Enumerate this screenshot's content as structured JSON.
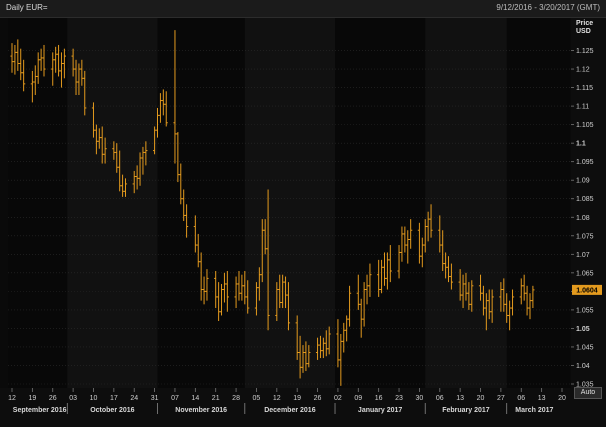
{
  "window": {
    "title": "Daily EUR=",
    "date_range": "9/12/2016 - 3/20/2017 (GMT)"
  },
  "auto_button": {
    "label": "Auto"
  },
  "colors": {
    "background": "#0a0a0a",
    "bar": "#e39a1e",
    "grid": "#2a2a2a",
    "last_price_badge": "#e39a1e"
  },
  "chart_data": {
    "type": "ohlc",
    "title": "Daily EUR=",
    "ylabel": "Price USD",
    "ylabel_line1": "Price",
    "ylabel_line2": "USD",
    "ylim": [
      1.035,
      1.13
    ],
    "x_day_range": [
      0,
      189
    ],
    "y_ticks": [
      "1.125",
      "1.12",
      "1.115",
      "1.11",
      "1.105",
      "1.1",
      "1.095",
      "1.09",
      "1.085",
      "1.08",
      "1.075",
      "1.07",
      "1.065",
      "1.06",
      "1.055",
      "1.05",
      "1.045",
      "1.04",
      "1.035"
    ],
    "y_tick_values": [
      1.125,
      1.12,
      1.115,
      1.11,
      1.105,
      1.1,
      1.095,
      1.09,
      1.085,
      1.08,
      1.075,
      1.07,
      1.065,
      1.06,
      1.055,
      1.05,
      1.045,
      1.04,
      1.035
    ],
    "bold_y_ticks": [
      1.1,
      1.05
    ],
    "x_ticks": [
      {
        "label": "12",
        "day": 0
      },
      {
        "label": "19",
        "day": 7
      },
      {
        "label": "26",
        "day": 14
      },
      {
        "label": "03",
        "day": 21
      },
      {
        "label": "10",
        "day": 28
      },
      {
        "label": "17",
        "day": 35
      },
      {
        "label": "24",
        "day": 42
      },
      {
        "label": "31",
        "day": 49
      },
      {
        "label": "07",
        "day": 56
      },
      {
        "label": "14",
        "day": 63
      },
      {
        "label": "21",
        "day": 70
      },
      {
        "label": "28",
        "day": 77
      },
      {
        "label": "05",
        "day": 84
      },
      {
        "label": "12",
        "day": 91
      },
      {
        "label": "19",
        "day": 98
      },
      {
        "label": "26",
        "day": 105
      },
      {
        "label": "02",
        "day": 112
      },
      {
        "label": "09",
        "day": 119
      },
      {
        "label": "16",
        "day": 126
      },
      {
        "label": "23",
        "day": 133
      },
      {
        "label": "30",
        "day": 140
      },
      {
        "label": "06",
        "day": 147
      },
      {
        "label": "13",
        "day": 154
      },
      {
        "label": "20",
        "day": 161
      },
      {
        "label": "27",
        "day": 168
      },
      {
        "label": "06",
        "day": 175
      },
      {
        "label": "13",
        "day": 182
      },
      {
        "label": "20",
        "day": 189
      }
    ],
    "months": [
      {
        "label": "September 2016",
        "start": 0,
        "end": 19
      },
      {
        "label": "October 2016",
        "start": 19,
        "end": 50
      },
      {
        "label": "November 2016",
        "start": 50,
        "end": 80
      },
      {
        "label": "December 2016",
        "start": 80,
        "end": 111
      },
      {
        "label": "January 2017",
        "start": 111,
        "end": 142
      },
      {
        "label": "February 2017",
        "start": 142,
        "end": 170
      },
      {
        "label": "March 2017",
        "start": 170,
        "end": 189
      }
    ],
    "last_price": "1.0604",
    "last_price_value": 1.0604,
    "bars": [
      {
        "d": 0,
        "o": 1.1235,
        "h": 1.127,
        "l": 1.119,
        "c": 1.122
      },
      {
        "d": 1,
        "o": 1.122,
        "h": 1.1265,
        "l": 1.1185,
        "c": 1.1245
      },
      {
        "d": 2,
        "o": 1.1245,
        "h": 1.128,
        "l": 1.1195,
        "c": 1.1215
      },
      {
        "d": 3,
        "o": 1.1215,
        "h": 1.1255,
        "l": 1.117,
        "c": 1.119
      },
      {
        "d": 4,
        "o": 1.119,
        "h": 1.1225,
        "l": 1.114,
        "c": 1.116
      },
      {
        "d": 7,
        "o": 1.116,
        "h": 1.1195,
        "l": 1.111,
        "c": 1.1165
      },
      {
        "d": 8,
        "o": 1.1165,
        "h": 1.121,
        "l": 1.113,
        "c": 1.118
      },
      {
        "d": 9,
        "o": 1.118,
        "h": 1.1245,
        "l": 1.116,
        "c": 1.1225
      },
      {
        "d": 10,
        "o": 1.1225,
        "h": 1.1255,
        "l": 1.1195,
        "c": 1.123
      },
      {
        "d": 11,
        "o": 1.123,
        "h": 1.1265,
        "l": 1.118,
        "c": 1.12
      },
      {
        "d": 14,
        "o": 1.12,
        "h": 1.1245,
        "l": 1.1155,
        "c": 1.1225
      },
      {
        "d": 15,
        "o": 1.1225,
        "h": 1.126,
        "l": 1.119,
        "c": 1.124
      },
      {
        "d": 16,
        "o": 1.124,
        "h": 1.1265,
        "l": 1.118,
        "c": 1.1195
      },
      {
        "d": 17,
        "o": 1.1195,
        "h": 1.1245,
        "l": 1.115,
        "c": 1.1215
      },
      {
        "d": 18,
        "o": 1.1215,
        "h": 1.1255,
        "l": 1.1175,
        "c": 1.1235
      },
      {
        "d": 21,
        "o": 1.1235,
        "h": 1.1255,
        "l": 1.118,
        "c": 1.12
      },
      {
        "d": 22,
        "o": 1.12,
        "h": 1.1225,
        "l": 1.113,
        "c": 1.1165
      },
      {
        "d": 23,
        "o": 1.1165,
        "h": 1.1215,
        "l": 1.113,
        "c": 1.12
      },
      {
        "d": 24,
        "o": 1.12,
        "h": 1.1225,
        "l": 1.1155,
        "c": 1.1175
      },
      {
        "d": 25,
        "o": 1.1175,
        "h": 1.1195,
        "l": 1.1075,
        "c": 1.1095
      },
      {
        "d": 28,
        "o": 1.1095,
        "h": 1.111,
        "l": 1.1015,
        "c": 1.1035
      },
      {
        "d": 29,
        "o": 1.1035,
        "h": 1.105,
        "l": 1.097,
        "c": 1.1005
      },
      {
        "d": 30,
        "o": 1.1005,
        "h": 1.104,
        "l": 1.0985,
        "c": 1.1015
      },
      {
        "d": 31,
        "o": 1.1015,
        "h": 1.1045,
        "l": 1.0945,
        "c": 1.097
      },
      {
        "d": 32,
        "o": 1.097,
        "h": 1.1015,
        "l": 1.0945,
        "c": 1.0985
      },
      {
        "d": 35,
        "o": 1.0985,
        "h": 1.1005,
        "l": 1.0955,
        "c": 1.0975
      },
      {
        "d": 36,
        "o": 1.0975,
        "h": 1.1,
        "l": 1.092,
        "c": 1.0935
      },
      {
        "d": 37,
        "o": 1.0935,
        "h": 1.098,
        "l": 1.087,
        "c": 1.0885
      },
      {
        "d": 38,
        "o": 1.0885,
        "h": 1.0915,
        "l": 1.0855,
        "c": 1.087
      },
      {
        "d": 39,
        "o": 1.087,
        "h": 1.0905,
        "l": 1.0855,
        "c": 1.089
      },
      {
        "d": 42,
        "o": 1.089,
        "h": 1.0925,
        "l": 1.0865,
        "c": 1.091
      },
      {
        "d": 43,
        "o": 1.091,
        "h": 1.094,
        "l": 1.0875,
        "c": 1.0905
      },
      {
        "d": 44,
        "o": 1.0905,
        "h": 1.0975,
        "l": 1.0885,
        "c": 1.096
      },
      {
        "d": 45,
        "o": 1.096,
        "h": 1.099,
        "l": 1.0915,
        "c": 1.0975
      },
      {
        "d": 46,
        "o": 1.0975,
        "h": 1.1005,
        "l": 1.094,
        "c": 1.098
      },
      {
        "d": 49,
        "o": 1.098,
        "h": 1.1045,
        "l": 1.097,
        "c": 1.1035
      },
      {
        "d": 50,
        "o": 1.1035,
        "h": 1.1095,
        "l": 1.1015,
        "c": 1.1075
      },
      {
        "d": 51,
        "o": 1.1075,
        "h": 1.1135,
        "l": 1.1055,
        "c": 1.1115
      },
      {
        "d": 52,
        "o": 1.1115,
        "h": 1.1145,
        "l": 1.1075,
        "c": 1.1105
      },
      {
        "d": 53,
        "o": 1.1105,
        "h": 1.114,
        "l": 1.1045,
        "c": 1.1055
      },
      {
        "d": 56,
        "o": 1.1055,
        "h": 1.1305,
        "l": 1.0945,
        "c": 1.1025
      },
      {
        "d": 57,
        "o": 1.1025,
        "h": 1.103,
        "l": 1.0895,
        "c": 1.0915
      },
      {
        "d": 58,
        "o": 1.0915,
        "h": 1.0945,
        "l": 1.0835,
        "c": 1.085
      },
      {
        "d": 59,
        "o": 1.085,
        "h": 1.0875,
        "l": 1.079,
        "c": 1.0805
      },
      {
        "d": 60,
        "o": 1.0805,
        "h": 1.0835,
        "l": 1.0745,
        "c": 1.0775
      },
      {
        "d": 63,
        "o": 1.0775,
        "h": 1.0805,
        "l": 1.0705,
        "c": 1.0725
      },
      {
        "d": 64,
        "o": 1.0725,
        "h": 1.0755,
        "l": 1.0665,
        "c": 1.068
      },
      {
        "d": 65,
        "o": 1.068,
        "h": 1.0705,
        "l": 1.0575,
        "c": 1.0605
      },
      {
        "d": 66,
        "o": 1.0605,
        "h": 1.064,
        "l": 1.0565,
        "c": 1.06
      },
      {
        "d": 67,
        "o": 1.06,
        "h": 1.066,
        "l": 1.0575,
        "c": 1.0635
      },
      {
        "d": 70,
        "o": 1.0635,
        "h": 1.0655,
        "l": 1.0555,
        "c": 1.0585
      },
      {
        "d": 71,
        "o": 1.0585,
        "h": 1.0625,
        "l": 1.052,
        "c": 1.0545
      },
      {
        "d": 72,
        "o": 1.0545,
        "h": 1.062,
        "l": 1.0535,
        "c": 1.0605
      },
      {
        "d": 73,
        "o": 1.0605,
        "h": 1.065,
        "l": 1.057,
        "c": 1.062
      },
      {
        "d": 74,
        "o": 1.062,
        "h": 1.0655,
        "l": 1.0545,
        "c": 1.0585
      },
      {
        "d": 77,
        "o": 1.0585,
        "h": 1.064,
        "l": 1.0555,
        "c": 1.062
      },
      {
        "d": 78,
        "o": 1.062,
        "h": 1.0655,
        "l": 1.0575,
        "c": 1.0595
      },
      {
        "d": 79,
        "o": 1.0595,
        "h": 1.0645,
        "l": 1.0575,
        "c": 1.0615
      },
      {
        "d": 80,
        "o": 1.0615,
        "h": 1.0655,
        "l": 1.0565,
        "c": 1.0585
      },
      {
        "d": 81,
        "o": 1.0585,
        "h": 1.063,
        "l": 1.054,
        "c": 1.0555
      },
      {
        "d": 84,
        "o": 1.0555,
        "h": 1.0625,
        "l": 1.0535,
        "c": 1.061
      },
      {
        "d": 85,
        "o": 1.061,
        "h": 1.0665,
        "l": 1.0575,
        "c": 1.0645
      },
      {
        "d": 86,
        "o": 1.0645,
        "h": 1.0795,
        "l": 1.0625,
        "c": 1.0765
      },
      {
        "d": 87,
        "o": 1.0765,
        "h": 1.0795,
        "l": 1.07,
        "c": 1.0715
      },
      {
        "d": 88,
        "o": 1.0715,
        "h": 1.0875,
        "l": 1.0495,
        "c": 1.0535
      },
      {
        "d": 91,
        "o": 1.0535,
        "h": 1.0625,
        "l": 1.052,
        "c": 1.0605
      },
      {
        "d": 92,
        "o": 1.0605,
        "h": 1.0645,
        "l": 1.0555,
        "c": 1.057
      },
      {
        "d": 93,
        "o": 1.057,
        "h": 1.0645,
        "l": 1.0555,
        "c": 1.0625
      },
      {
        "d": 94,
        "o": 1.0625,
        "h": 1.064,
        "l": 1.0555,
        "c": 1.059
      },
      {
        "d": 95,
        "o": 1.059,
        "h": 1.0625,
        "l": 1.0495,
        "c": 1.0515
      },
      {
        "d": 98,
        "o": 1.0515,
        "h": 1.0535,
        "l": 1.0415,
        "c": 1.0435
      },
      {
        "d": 99,
        "o": 1.0435,
        "h": 1.048,
        "l": 1.0365,
        "c": 1.0395
      },
      {
        "d": 100,
        "o": 1.0395,
        "h": 1.0455,
        "l": 1.038,
        "c": 1.0435
      },
      {
        "d": 101,
        "o": 1.0435,
        "h": 1.0465,
        "l": 1.0385,
        "c": 1.0405
      },
      {
        "d": 102,
        "o": 1.0405,
        "h": 1.0455,
        "l": 1.0395,
        "c": 1.0435
      },
      {
        "d": 105,
        "o": 1.0435,
        "h": 1.0475,
        "l": 1.0415,
        "c": 1.0455
      },
      {
        "d": 106,
        "o": 1.0455,
        "h": 1.048,
        "l": 1.042,
        "c": 1.044
      },
      {
        "d": 107,
        "o": 1.044,
        "h": 1.0475,
        "l": 1.042,
        "c": 1.046
      },
      {
        "d": 108,
        "o": 1.046,
        "h": 1.0495,
        "l": 1.0425,
        "c": 1.0445
      },
      {
        "d": 109,
        "o": 1.0445,
        "h": 1.0505,
        "l": 1.043,
        "c": 1.0485
      },
      {
        "d": 112,
        "o": 1.0485,
        "h": 1.0525,
        "l": 1.0395,
        "c": 1.0415
      },
      {
        "d": 113,
        "o": 1.0415,
        "h": 1.0485,
        "l": 1.0345,
        "c": 1.0465
      },
      {
        "d": 114,
        "o": 1.0465,
        "h": 1.0515,
        "l": 1.0435,
        "c": 1.0495
      },
      {
        "d": 115,
        "o": 1.0495,
        "h": 1.0535,
        "l": 1.0465,
        "c": 1.0525
      },
      {
        "d": 116,
        "o": 1.0525,
        "h": 1.0615,
        "l": 1.0505,
        "c": 1.0595
      },
      {
        "d": 119,
        "o": 1.0595,
        "h": 1.0645,
        "l": 1.055,
        "c": 1.0565
      },
      {
        "d": 120,
        "o": 1.0565,
        "h": 1.058,
        "l": 1.0475,
        "c": 1.0525
      },
      {
        "d": 121,
        "o": 1.0525,
        "h": 1.0625,
        "l": 1.0505,
        "c": 1.0605
      },
      {
        "d": 122,
        "o": 1.0605,
        "h": 1.0645,
        "l": 1.0565,
        "c": 1.0615
      },
      {
        "d": 123,
        "o": 1.0615,
        "h": 1.0675,
        "l": 1.0585,
        "c": 1.0645
      },
      {
        "d": 126,
        "o": 1.0645,
        "h": 1.0685,
        "l": 1.0585,
        "c": 1.0605
      },
      {
        "d": 127,
        "o": 1.0605,
        "h": 1.0685,
        "l": 1.0595,
        "c": 1.0665
      },
      {
        "d": 128,
        "o": 1.0665,
        "h": 1.0705,
        "l": 1.0615,
        "c": 1.0635
      },
      {
        "d": 129,
        "o": 1.0635,
        "h": 1.0705,
        "l": 1.0605,
        "c": 1.0685
      },
      {
        "d": 130,
        "o": 1.0685,
        "h": 1.0725,
        "l": 1.0625,
        "c": 1.0655
      },
      {
        "d": 133,
        "o": 1.0655,
        "h": 1.0725,
        "l": 1.0635,
        "c": 1.0705
      },
      {
        "d": 134,
        "o": 1.0705,
        "h": 1.0775,
        "l": 1.068,
        "c": 1.0755
      },
      {
        "d": 135,
        "o": 1.0755,
        "h": 1.0775,
        "l": 1.0705,
        "c": 1.0725
      },
      {
        "d": 136,
        "o": 1.0725,
        "h": 1.0765,
        "l": 1.0675,
        "c": 1.074
      },
      {
        "d": 137,
        "o": 1.074,
        "h": 1.0795,
        "l": 1.0715,
        "c": 1.0765
      },
      {
        "d": 140,
        "o": 1.0765,
        "h": 1.0785,
        "l": 1.0675,
        "c": 1.0695
      },
      {
        "d": 141,
        "o": 1.0695,
        "h": 1.0745,
        "l": 1.0665,
        "c": 1.0725
      },
      {
        "d": 142,
        "o": 1.0725,
        "h": 1.0795,
        "l": 1.0705,
        "c": 1.0775
      },
      {
        "d": 143,
        "o": 1.0775,
        "h": 1.0815,
        "l": 1.0735,
        "c": 1.0795
      },
      {
        "d": 144,
        "o": 1.0795,
        "h": 1.0835,
        "l": 1.0745,
        "c": 1.0765
      },
      {
        "d": 147,
        "o": 1.0765,
        "h": 1.0805,
        "l": 1.0705,
        "c": 1.0725
      },
      {
        "d": 148,
        "o": 1.0725,
        "h": 1.0765,
        "l": 1.0655,
        "c": 1.0675
      },
      {
        "d": 149,
        "o": 1.0675,
        "h": 1.0705,
        "l": 1.0635,
        "c": 1.0665
      },
      {
        "d": 150,
        "o": 1.0665,
        "h": 1.0695,
        "l": 1.0625,
        "c": 1.064
      },
      {
        "d": 151,
        "o": 1.064,
        "h": 1.0675,
        "l": 1.0605,
        "c": 1.0625
      },
      {
        "d": 154,
        "o": 1.0625,
        "h": 1.066,
        "l": 1.0575,
        "c": 1.059
      },
      {
        "d": 155,
        "o": 1.059,
        "h": 1.0645,
        "l": 1.0555,
        "c": 1.062
      },
      {
        "d": 156,
        "o": 1.062,
        "h": 1.065,
        "l": 1.0575,
        "c": 1.0595
      },
      {
        "d": 157,
        "o": 1.0595,
        "h": 1.0625,
        "l": 1.055,
        "c": 1.0565
      },
      {
        "d": 158,
        "o": 1.0565,
        "h": 1.063,
        "l": 1.0545,
        "c": 1.0615
      },
      {
        "d": 161,
        "o": 1.0615,
        "h": 1.0645,
        "l": 1.0575,
        "c": 1.0595
      },
      {
        "d": 162,
        "o": 1.0595,
        "h": 1.0615,
        "l": 1.0535,
        "c": 1.0555
      },
      {
        "d": 163,
        "o": 1.0555,
        "h": 1.0595,
        "l": 1.0495,
        "c": 1.0575
      },
      {
        "d": 164,
        "o": 1.0575,
        "h": 1.0605,
        "l": 1.0525,
        "c": 1.0545
      },
      {
        "d": 165,
        "o": 1.0545,
        "h": 1.0605,
        "l": 1.0515,
        "c": 1.0585
      },
      {
        "d": 168,
        "o": 1.0585,
        "h": 1.0625,
        "l": 1.0545,
        "c": 1.0605
      },
      {
        "d": 169,
        "o": 1.0605,
        "h": 1.0635,
        "l": 1.0545,
        "c": 1.0565
      },
      {
        "d": 170,
        "o": 1.0565,
        "h": 1.0595,
        "l": 1.0515,
        "c": 1.0535
      },
      {
        "d": 171,
        "o": 1.0535,
        "h": 1.0575,
        "l": 1.0495,
        "c": 1.0555
      },
      {
        "d": 172,
        "o": 1.0555,
        "h": 1.0605,
        "l": 1.0535,
        "c": 1.0585
      },
      {
        "d": 175,
        "o": 1.0585,
        "h": 1.0635,
        "l": 1.0565,
        "c": 1.0615
      },
      {
        "d": 176,
        "o": 1.0615,
        "h": 1.0645,
        "l": 1.0575,
        "c": 1.0595
      },
      {
        "d": 177,
        "o": 1.0595,
        "h": 1.0615,
        "l": 1.0535,
        "c": 1.0555
      },
      {
        "d": 178,
        "o": 1.0555,
        "h": 1.0595,
        "l": 1.0525,
        "c": 1.0575
      },
      {
        "d": 179,
        "o": 1.0575,
        "h": 1.0615,
        "l": 1.0555,
        "c": 1.0604
      }
    ]
  }
}
